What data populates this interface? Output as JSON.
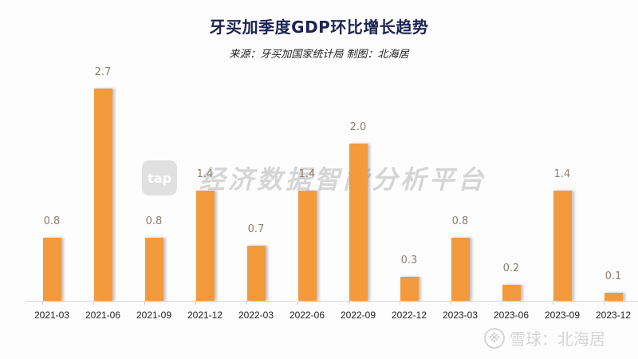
{
  "header": {
    "title": "牙买加季度GDP环比增长趋势",
    "subtitle": "来源：牙买加国家统计局 制图：北海居"
  },
  "watermark": {
    "logo_text": "tap",
    "text": "经济数据智能分析平台"
  },
  "footer_watermark": {
    "icon": "snowball-icon",
    "text": "雪球：北海居"
  },
  "colors": {
    "bar": "#f39a3c",
    "title": "#1c2452",
    "value_label": "#8a7f72"
  },
  "chart_data": {
    "type": "bar",
    "title": "牙买加季度GDP环比增长趋势",
    "subtitle": "来源：牙买加国家统计局 制图：北海居",
    "categories": [
      "2021-03",
      "2021-06",
      "2021-09",
      "2021-12",
      "2022-03",
      "2022-06",
      "2022-09",
      "2022-12",
      "2023-03",
      "2023-06",
      "2023-09",
      "2023-12"
    ],
    "values": [
      0.8,
      2.7,
      0.8,
      1.4,
      0.7,
      1.4,
      2.0,
      0.3,
      0.8,
      0.2,
      1.4,
      0.1
    ],
    "value_labels": [
      "0.8",
      "2.7",
      "0.8",
      "1.4",
      "0.7",
      "1.4",
      "2.0",
      "0.3",
      "0.8",
      "0.2",
      "1.4",
      "0.1"
    ],
    "xlabel": "",
    "ylabel": "",
    "ylim": [
      0,
      3
    ],
    "grid": false,
    "legend": null
  }
}
